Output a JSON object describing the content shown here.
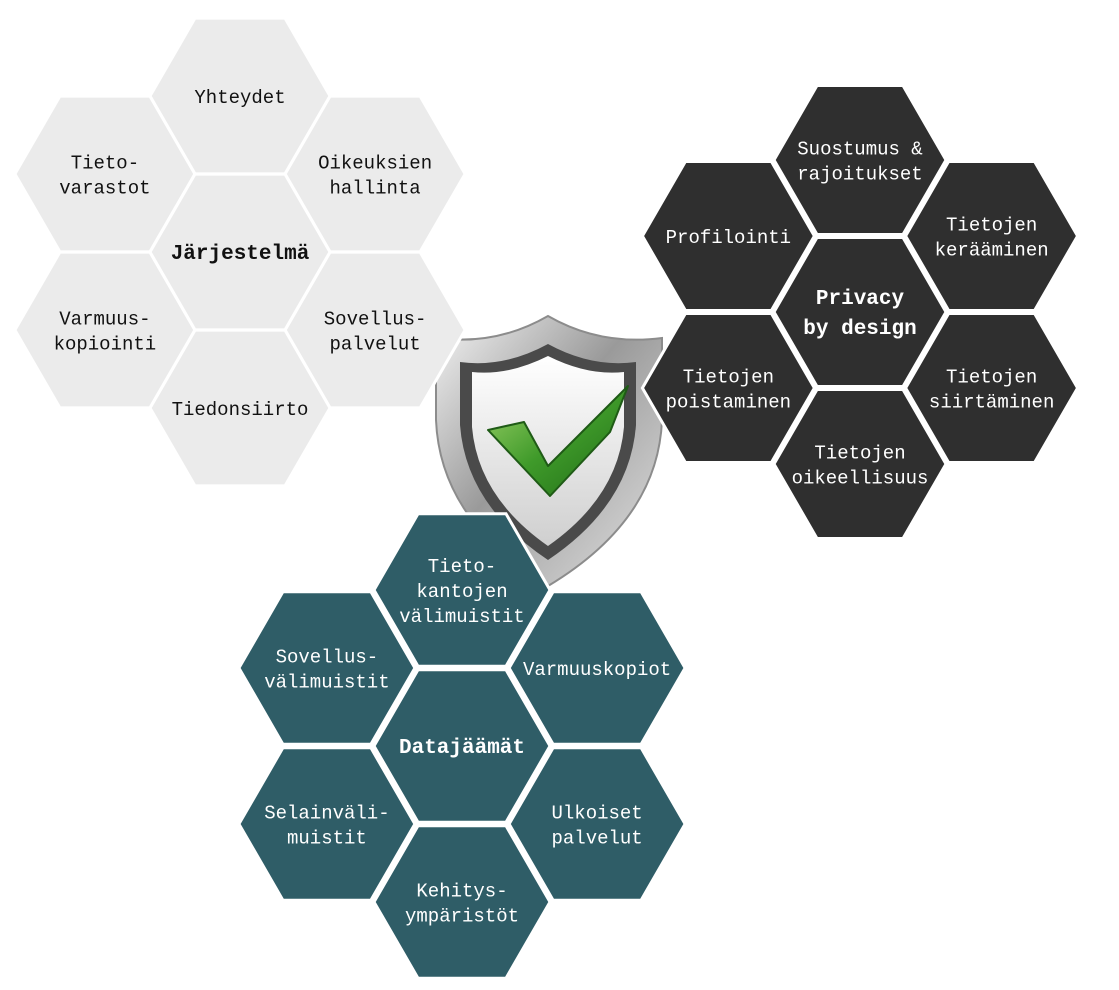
{
  "colors": {
    "light_hex": "#ebebeb",
    "light_text": "#111111",
    "dark_hex": "#2f2f2f",
    "dark_text": "#ffffff",
    "teal_hex": "#2f5d67",
    "teal_text": "#ffffff",
    "shield_check": "#3f9a2a"
  },
  "icon": "shield-checkmark-icon",
  "clusters": [
    {
      "id": "jarjestelma",
      "theme": "light",
      "center_label": [
        "Järjestelmä"
      ],
      "items": [
        [
          "Yhteydet"
        ],
        [
          "Oikeuksien",
          "hallinta"
        ],
        [
          "Sovellus-",
          "palvelut"
        ],
        [
          "Tiedonsiirto"
        ],
        [
          "Varmuus-",
          "kopiointi"
        ],
        [
          "Tieto-",
          "varastot"
        ]
      ]
    },
    {
      "id": "privacy",
      "theme": "dark",
      "center_label": [
        "Privacy",
        "by design"
      ],
      "items": [
        [
          "Suostumus &",
          "rajoitukset"
        ],
        [
          "Tietojen",
          "kerääminen"
        ],
        [
          "Tietojen",
          "siirtäminen"
        ],
        [
          "Tietojen",
          "oikeellisuus"
        ],
        [
          "Tietojen",
          "poistaminen"
        ],
        [
          "Profilointi"
        ]
      ]
    },
    {
      "id": "datajaamat",
      "theme": "teal",
      "center_label": [
        "Datajäämät"
      ],
      "items": [
        [
          "Tieto-",
          "kantojen",
          "välimuistit"
        ],
        [
          "Varmuuskopiot"
        ],
        [
          "Ulkoiset",
          "palvelut"
        ],
        [
          "Kehitys-",
          "ympäristöt"
        ],
        [
          "Selainväli-",
          "muistit"
        ],
        [
          "Sovellus-",
          "välimuistit"
        ]
      ]
    }
  ]
}
